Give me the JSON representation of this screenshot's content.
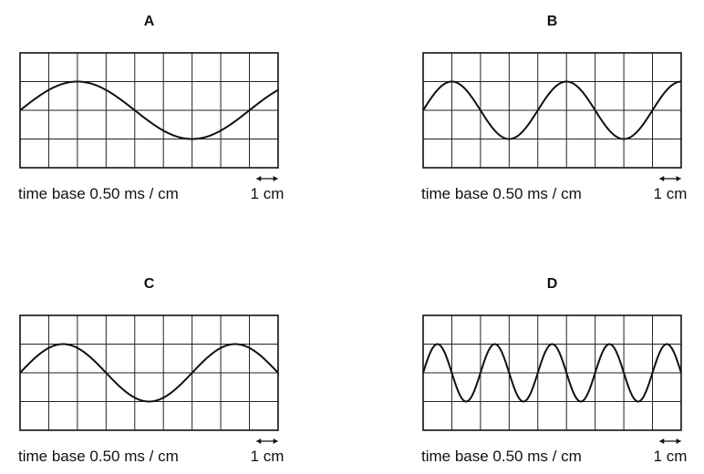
{
  "panels": [
    {
      "label": "A",
      "time_base": "time base 0.50 ms / cm",
      "scale": "1 cm"
    },
    {
      "label": "B",
      "time_base": "time base 0.50 ms / cm",
      "scale": "1 cm"
    },
    {
      "label": "C",
      "time_base": "time base 0.50 ms / cm",
      "scale": "1 cm"
    },
    {
      "label": "D",
      "time_base": "time base 0.50 ms / cm",
      "scale": "1 cm"
    }
  ]
}
